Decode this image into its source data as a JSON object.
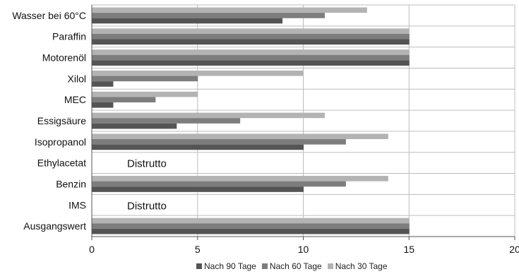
{
  "chart_data": {
    "type": "bar",
    "orientation": "horizontal",
    "categories": [
      "Wasser bei 60°C",
      "Paraffin",
      "Motorenöl",
      "Xilol",
      "MEC",
      "Essigsäure",
      "Isopropanol",
      "Ethylacetat",
      "Benzin",
      "IMS",
      "Ausgangswert"
    ],
    "series": [
      {
        "name": "Nach 90 Tage",
        "color": "#545454",
        "values": [
          9,
          15,
          15,
          1,
          1,
          4,
          10,
          null,
          10,
          null,
          15
        ]
      },
      {
        "name": "Nach 60 Tage",
        "color": "#7d7d7d",
        "values": [
          11,
          15,
          15,
          5,
          3,
          7,
          12,
          null,
          12,
          null,
          15
        ]
      },
      {
        "name": "Nach 30 Tage",
        "color": "#b3b3b3",
        "values": [
          13,
          15,
          15,
          10,
          5,
          11,
          14,
          null,
          14,
          null,
          15
        ]
      }
    ],
    "annotations": [
      {
        "category": "Ethylacetat",
        "text": "Distrutto"
      },
      {
        "category": "IMS",
        "text": "Distrutto"
      }
    ],
    "xlim": [
      0,
      20
    ],
    "xticks": [
      0,
      5,
      10,
      15,
      20
    ],
    "grid": true,
    "legend_position": "bottom"
  }
}
